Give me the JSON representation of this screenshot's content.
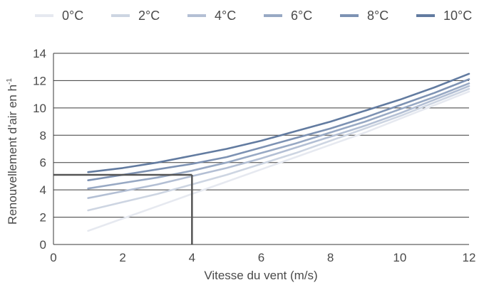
{
  "chart_data": {
    "type": "line",
    "title": "",
    "xlabel": "Vitesse du vent (m/s)",
    "ylabel": "Renouvellement d'air en h",
    "ylabel_superscript": "-1",
    "xlim": [
      0,
      12
    ],
    "ylim": [
      0,
      14
    ],
    "xticks": [
      "0",
      "2",
      "4",
      "6",
      "8",
      "10",
      "12"
    ],
    "yticks": [
      "0",
      "2",
      "4",
      "6",
      "8",
      "10",
      "12",
      "14"
    ],
    "grid": "horizontal",
    "legend_position": "top",
    "x": [
      1,
      2,
      3,
      4,
      5,
      6,
      7,
      8,
      9,
      10,
      11,
      12
    ],
    "series": [
      {
        "name": "0°C",
        "color": "#e6e9f0",
        "values": [
          1.0,
          1.9,
          2.8,
          3.7,
          4.6,
          5.5,
          6.4,
          7.3,
          8.2,
          9.2,
          10.2,
          11.2
        ]
      },
      {
        "name": "2°C",
        "color": "#cdd5e2",
        "values": [
          2.5,
          3.1,
          3.7,
          4.4,
          5.1,
          5.9,
          6.7,
          7.6,
          8.5,
          9.4,
          10.4,
          11.4
        ]
      },
      {
        "name": "4°C",
        "color": "#b3bfd4",
        "values": [
          3.4,
          3.9,
          4.4,
          5.0,
          5.6,
          6.3,
          7.1,
          7.9,
          8.7,
          9.6,
          10.6,
          11.6
        ]
      },
      {
        "name": "6°C",
        "color": "#98a9c4",
        "values": [
          4.1,
          4.5,
          4.9,
          5.4,
          6.0,
          6.7,
          7.4,
          8.2,
          9.0,
          9.9,
          10.8,
          11.8
        ]
      },
      {
        "name": "8°C",
        "color": "#7d92b3",
        "values": [
          4.7,
          5.1,
          5.5,
          5.9,
          6.4,
          7.1,
          7.8,
          8.5,
          9.3,
          10.2,
          11.1,
          12.1
        ]
      },
      {
        "name": "10°C",
        "color": "#627ba0",
        "values": [
          5.3,
          5.6,
          6.0,
          6.5,
          7.0,
          7.6,
          8.3,
          9.0,
          9.8,
          10.6,
          11.5,
          12.5
        ]
      }
    ],
    "annotation": {
      "x": 4,
      "y": 5.1,
      "color": "#555555"
    }
  }
}
